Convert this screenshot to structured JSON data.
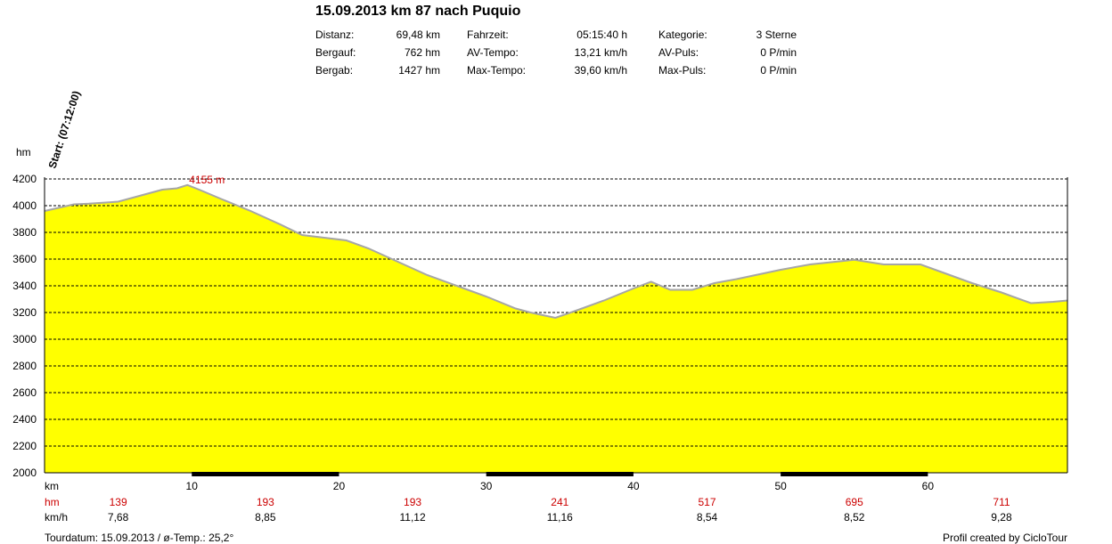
{
  "title": "15.09.2013 km 87 nach Puquio",
  "stats": [
    {
      "label": "Distanz:",
      "value": "69,48 km"
    },
    {
      "label": "Bergauf:",
      "value": "762 hm"
    },
    {
      "label": "Bergab:",
      "value": "1427 hm"
    },
    {
      "label": "Fahrzeit:",
      "value": "05:15:40 h"
    },
    {
      "label": "AV-Tempo:",
      "value": "13,21 km/h"
    },
    {
      "label": "Max-Tempo:",
      "value": "39,60 km/h"
    },
    {
      "label": "Kategorie:",
      "value": "3 Sterne"
    },
    {
      "label": "AV-Puls:",
      "value": "0 P/min"
    },
    {
      "label": "Max-Puls:",
      "value": "0 P/min"
    }
  ],
  "footer": {
    "left": "Tourdatum: 15.09.2013  /  ø-Temp.: 25,2°",
    "right": "Profil created by CicloTour"
  },
  "chart_data": {
    "type": "area",
    "ylabel": "hm",
    "xlabel": "km",
    "start_label": "Start: (07:12:00)",
    "peak_label": "4155 m",
    "xlim": [
      0,
      69.48
    ],
    "ylim": [
      2000,
      4200
    ],
    "yticks": [
      2000,
      2200,
      2400,
      2600,
      2800,
      3000,
      3200,
      3400,
      3600,
      3800,
      4000,
      4200
    ],
    "xticks": [
      10,
      20,
      30,
      40,
      50,
      60
    ],
    "grid": true,
    "fill_color": "#ffff00",
    "line_color": "#a6a6a6",
    "x": [
      0,
      2,
      3,
      5,
      7,
      8,
      9,
      9.7,
      10.5,
      12,
      14,
      16,
      17.5,
      19,
      20.5,
      22,
      24,
      26,
      28,
      30,
      32,
      33,
      34.7,
      36,
      38,
      40,
      41.2,
      42.5,
      44,
      45.5,
      47,
      50,
      52,
      55,
      57,
      59.5,
      61,
      63,
      65,
      67,
      68.5,
      69.48
    ],
    "y": [
      3960,
      4010,
      4015,
      4030,
      4090,
      4120,
      4130,
      4155,
      4120,
      4050,
      3960,
      3860,
      3780,
      3760,
      3740,
      3680,
      3580,
      3480,
      3400,
      3320,
      3230,
      3200,
      3160,
      3210,
      3290,
      3380,
      3430,
      3370,
      3370,
      3420,
      3450,
      3520,
      3560,
      3595,
      3560,
      3560,
      3500,
      3420,
      3350,
      3270,
      3280,
      3290
    ],
    "segments": [
      {
        "km": 5,
        "hm": "139",
        "kmh": "7,68"
      },
      {
        "km": 15,
        "hm": "193",
        "kmh": "8,85"
      },
      {
        "km": 25,
        "hm": "193",
        "kmh": "11,12"
      },
      {
        "km": 35,
        "hm": "241",
        "kmh": "11,16"
      },
      {
        "km": 45,
        "hm": "517",
        "kmh": "8,54"
      },
      {
        "km": 55,
        "hm": "695",
        "kmh": "8,52"
      },
      {
        "km": 65,
        "hm": "711",
        "kmh": "9,28"
      }
    ],
    "row_labels": {
      "km": "km",
      "hm": "hm",
      "kmh": "km/h"
    }
  }
}
